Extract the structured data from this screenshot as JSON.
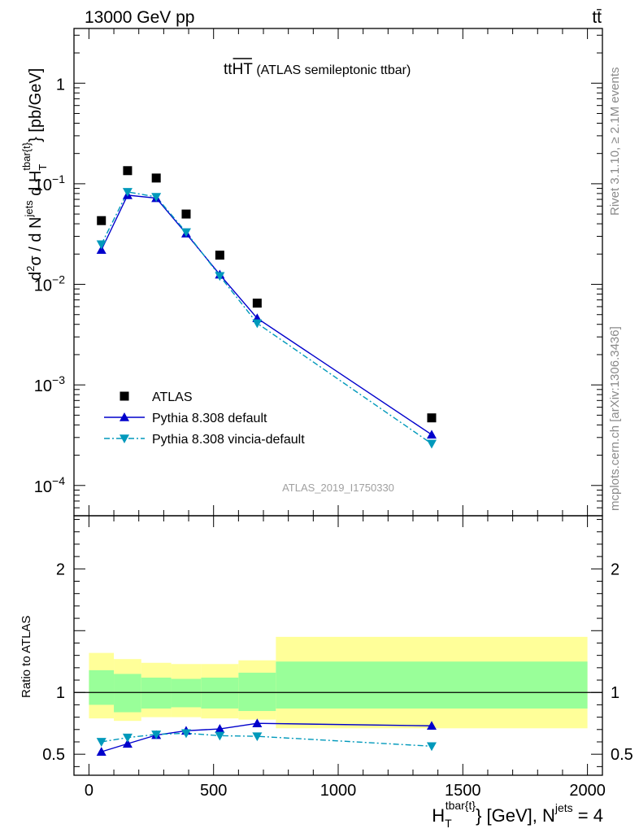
{
  "header": {
    "energy_label": "13000 GeV pp",
    "process_label": "tt̄"
  },
  "plot": {
    "title_main": "tt",
    "title_over": "HT",
    "title_suffix": " (ATLAS semileptonic ttbar)",
    "analysis_id": "ATLAS_2019_I1750330",
    "side_rivet": "Rivet 3.1.10, ≥ 2.1M events",
    "side_mcplots": "mcplots.cern.ch [arXiv:1306.3436]",
    "ylabel_top": {
      "d2": "d",
      "two": "2",
      "sigma_div": "σ  /  d N",
      "jets_sup": "jets",
      "dH": " d H",
      "H_sub": "T",
      "tbar_sup": "tbar{t}",
      "units": "} [pb/GeV]"
    },
    "ylabel_bottom": "Ratio to ATLAS",
    "xlabel": {
      "H": "H",
      "T_sub": "T",
      "tbar_sup": "tbar{t}",
      "mid": "} [GeV], N",
      "jets_sup": "jets",
      "end": " = 4"
    }
  },
  "legend": {
    "position": "lower-left",
    "entries": [
      {
        "label": "ATLAS",
        "marker": "square",
        "color": "#000000"
      },
      {
        "label": "Pythia 8.308 default",
        "marker": "triangle-up",
        "color": "#0000cc"
      },
      {
        "label": "Pythia 8.308 vincia-default",
        "marker": "triangle-down",
        "color": "#0099bb"
      }
    ]
  },
  "chart_data": [
    {
      "type": "scatter",
      "panel": "main",
      "xlim": [
        -60,
        2060
      ],
      "ylim": [
        5e-05,
        3.5
      ],
      "yscale": "log",
      "ytick_labels": [
        {
          "base": "10",
          "exp": "−4",
          "value": 0.0001
        },
        {
          "base": "10",
          "exp": "−3",
          "value": 0.001
        },
        {
          "base": "10",
          "exp": "−2",
          "value": 0.01
        },
        {
          "base": "10",
          "exp": "−1",
          "value": 0.1
        },
        {
          "base": "1",
          "exp": "",
          "value": 1
        }
      ],
      "series": [
        {
          "name": "ATLAS",
          "color": "#000000",
          "x": [
            50,
            155,
            270,
            390,
            525,
            675,
            1375
          ],
          "y": [
            0.043,
            0.135,
            0.114,
            0.05,
            0.0195,
            0.0065,
            0.00047
          ]
        },
        {
          "name": "Pythia 8.308 default",
          "color": "#0000cc",
          "x": [
            50,
            155,
            270,
            390,
            525,
            675,
            1375
          ],
          "y": [
            0.022,
            0.077,
            0.072,
            0.032,
            0.0125,
            0.0046,
            0.00032
          ]
        },
        {
          "name": "Pythia 8.308 vincia-default",
          "color": "#0099bb",
          "x": [
            50,
            155,
            270,
            390,
            525,
            675,
            1375
          ],
          "y": [
            0.025,
            0.083,
            0.074,
            0.033,
            0.0121,
            0.0041,
            0.00026
          ]
        }
      ]
    },
    {
      "type": "line",
      "panel": "ratio",
      "xlim": [
        -60,
        2060
      ],
      "ylim": [
        0.33,
        2.43
      ],
      "xticks": [
        0,
        500,
        1000,
        1500,
        2000
      ],
      "xtick_labels": [
        "0",
        "500",
        "1000",
        "1500",
        "2000"
      ],
      "yticks": [
        0.5,
        1,
        2
      ],
      "ytick_labels": [
        "0.5",
        "1",
        "2"
      ],
      "bins": [
        {
          "x0": 0,
          "x1": 100,
          "y_inner": [
            0.9,
            1.18
          ],
          "y_outer": [
            0.79,
            1.32
          ]
        },
        {
          "x0": 100,
          "x1": 210,
          "y_inner": [
            0.84,
            1.15
          ],
          "y_outer": [
            0.77,
            1.27
          ]
        },
        {
          "x0": 210,
          "x1": 330,
          "y_inner": [
            0.87,
            1.12
          ],
          "y_outer": [
            0.8,
            1.24
          ]
        },
        {
          "x0": 330,
          "x1": 450,
          "y_inner": [
            0.88,
            1.11
          ],
          "y_outer": [
            0.8,
            1.23
          ]
        },
        {
          "x0": 450,
          "x1": 600,
          "y_inner": [
            0.87,
            1.12
          ],
          "y_outer": [
            0.79,
            1.23
          ]
        },
        {
          "x0": 600,
          "x1": 750,
          "y_inner": [
            0.85,
            1.16
          ],
          "y_outer": [
            0.78,
            1.26
          ]
        },
        {
          "x0": 750,
          "x1": 2000,
          "y_inner": [
            0.87,
            1.25
          ],
          "y_outer": [
            0.71,
            1.45
          ]
        }
      ],
      "band_colors": {
        "inner": "#99ff99",
        "outer": "#ffff99"
      },
      "series": [
        {
          "name": "Pythia 8.308 default",
          "color": "#0000cc",
          "x": [
            50,
            155,
            270,
            390,
            525,
            675,
            1375
          ],
          "y": [
            0.52,
            0.585,
            0.655,
            0.69,
            0.705,
            0.75,
            0.73
          ]
        },
        {
          "name": "Pythia 8.308 vincia-default",
          "color": "#0099bb",
          "x": [
            50,
            155,
            270,
            390,
            525,
            675,
            1375
          ],
          "y": [
            0.6,
            0.635,
            0.66,
            0.67,
            0.65,
            0.645,
            0.565
          ]
        }
      ]
    }
  ]
}
